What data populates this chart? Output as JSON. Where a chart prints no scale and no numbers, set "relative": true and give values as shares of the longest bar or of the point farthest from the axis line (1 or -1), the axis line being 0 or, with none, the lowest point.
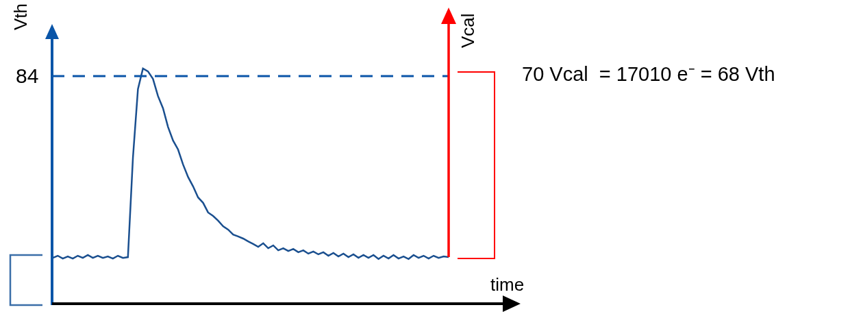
{
  "chart_data": {
    "type": "line",
    "relative": true,
    "grid": false,
    "xlabel": "time",
    "ylabel": "Vth",
    "y2label": "Vcal",
    "annotations": [
      "70 Vcal  = 17010 e⁻ = 68 Vth",
      "84"
    ],
    "ref_lines": [
      {
        "axis": "y",
        "value": 0.968,
        "color": "#0a55a8",
        "line_style": "dashed"
      }
    ],
    "categories": [
      null,
      null,
      null,
      null,
      null,
      null,
      null,
      null,
      null,
      null,
      null,
      null,
      null,
      null,
      null,
      null,
      null,
      null,
      null,
      null,
      null,
      null,
      null,
      null,
      null,
      null,
      null,
      null,
      null,
      null,
      null,
      null,
      null,
      null,
      null,
      null,
      null,
      null,
      null,
      null,
      null,
      null,
      null,
      null,
      null,
      null,
      null,
      null,
      null,
      null,
      null,
      null,
      null,
      null,
      null,
      null,
      null,
      null,
      null,
      null,
      null,
      null,
      null,
      null,
      null,
      null,
      null,
      null,
      null,
      null,
      null,
      null,
      null,
      null,
      null,
      null,
      null,
      null,
      null,
      null
    ],
    "series": [
      {
        "color": "#1a4f8f",
        "values": [
          0.195,
          0.204,
          0.192,
          0.201,
          0.192,
          0.204,
          0.195,
          0.207,
          0.195,
          0.204,
          0.195,
          0.201,
          0.192,
          0.204,
          0.195,
          0.198,
          0.621,
          0.913,
          1,
          0.988,
          0.956,
          0.883,
          0.831,
          0.752,
          0.694,
          0.656,
          0.592,
          0.539,
          0.499,
          0.452,
          0.429,
          0.388,
          0.373,
          0.353,
          0.329,
          0.315,
          0.294,
          0.286,
          0.277,
          0.265,
          0.254,
          0.242,
          0.257,
          0.236,
          0.248,
          0.227,
          0.236,
          0.224,
          0.233,
          0.219,
          0.227,
          0.213,
          0.222,
          0.21,
          0.219,
          0.204,
          0.216,
          0.201,
          0.213,
          0.198,
          0.21,
          0.195,
          0.207,
          0.195,
          0.207,
          0.19,
          0.204,
          0.192,
          0.207,
          0.192,
          0.201,
          0.19,
          0.207,
          0.195,
          0.204,
          0.192,
          0.204,
          0.195,
          0.201,
          0.198
        ]
      }
    ]
  }
}
